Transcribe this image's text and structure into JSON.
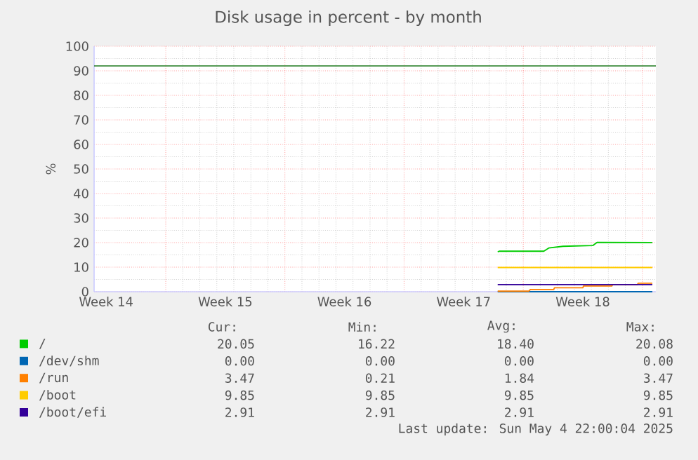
{
  "chart_data": {
    "type": "line",
    "title": "Disk usage in percent - by month",
    "ylabel": "%",
    "xlim": [
      "2025-04-02T19:00",
      "2025-05-05T19:00"
    ],
    "xticks": [
      {
        "value": "2025-04-03T12:00",
        "label": "Week 14"
      },
      {
        "value": "2025-04-07",
        "label": null
      },
      {
        "value": "2025-04-10T12:00",
        "label": "Week 15"
      },
      {
        "value": "2025-04-14",
        "label": null
      },
      {
        "value": "2025-04-17T12:00",
        "label": "Week 16"
      },
      {
        "value": "2025-04-21",
        "label": null
      },
      {
        "value": "2025-04-24T12:00",
        "label": "Week 17"
      },
      {
        "value": "2025-04-28",
        "label": null
      },
      {
        "value": "2025-05-01T12:00",
        "label": "Week 18"
      },
      {
        "value": "2025-05-05",
        "label": null
      }
    ],
    "ylim": [
      0,
      100
    ],
    "yticks": [
      0,
      10,
      20,
      30,
      40,
      50,
      60,
      70,
      80,
      90,
      100
    ],
    "grid": true,
    "legend": "bottom",
    "ref_lines": [
      {
        "axis": "y",
        "value": 92,
        "color": "#1e7a1e"
      }
    ],
    "series": [
      {
        "name": "/",
        "color": "#00cc00",
        "x": [
          "2025-04-26T12:00",
          "2025-04-26T14:00",
          "2025-04-29T05:00",
          "2025-04-29T12:00",
          "2025-04-30T08:00",
          "2025-05-02T02:00",
          "2025-05-02T08:00",
          "2025-05-05T14:00"
        ],
        "values": [
          16.22,
          16.5,
          16.5,
          17.8,
          18.5,
          18.8,
          20.08,
          20.05
        ]
      },
      {
        "name": "/dev/shm",
        "color": "#0066b3",
        "x": [
          "2025-04-26T12:00",
          "2025-05-05T14:00"
        ],
        "values": [
          0.0,
          0.0
        ]
      },
      {
        "name": "/run",
        "color": "#ff8000",
        "x": [
          "2025-04-26T12:00",
          "2025-04-28T08:00",
          "2025-04-28T10:00",
          "2025-04-29T19:00",
          "2025-04-29T20:00",
          "2025-05-01T12:00",
          "2025-05-01T13:00",
          "2025-05-03T05:00",
          "2025-05-03T06:00",
          "2025-05-04T17:00",
          "2025-05-04T18:00",
          "2025-05-05T14:00"
        ],
        "values": [
          0.21,
          0.21,
          0.9,
          0.9,
          1.6,
          1.6,
          2.3,
          2.3,
          2.9,
          2.9,
          3.47,
          3.47
        ]
      },
      {
        "name": "/boot",
        "color": "#ffcc00",
        "x": [
          "2025-04-26T12:00",
          "2025-05-05T14:00"
        ],
        "values": [
          9.85,
          9.85
        ]
      },
      {
        "name": "/boot/efi",
        "color": "#330099",
        "x": [
          "2025-04-26T12:00",
          "2025-05-05T14:00"
        ],
        "values": [
          2.91,
          2.91
        ]
      }
    ],
    "annotations": [
      "Cur:",
      "Min:",
      "Avg:",
      "Max:",
      "20.05",
      "16.22",
      "18.40",
      "20.08",
      "0.00",
      "0.00",
      "0.00",
      "0.00",
      "3.47",
      "0.21",
      "1.84",
      "3.47",
      "9.85",
      "9.85",
      "9.85",
      "9.85",
      "2.91",
      "2.91",
      "2.91",
      "2.91",
      "Last update: Sun May  4 22:00:04 2025"
    ]
  }
}
